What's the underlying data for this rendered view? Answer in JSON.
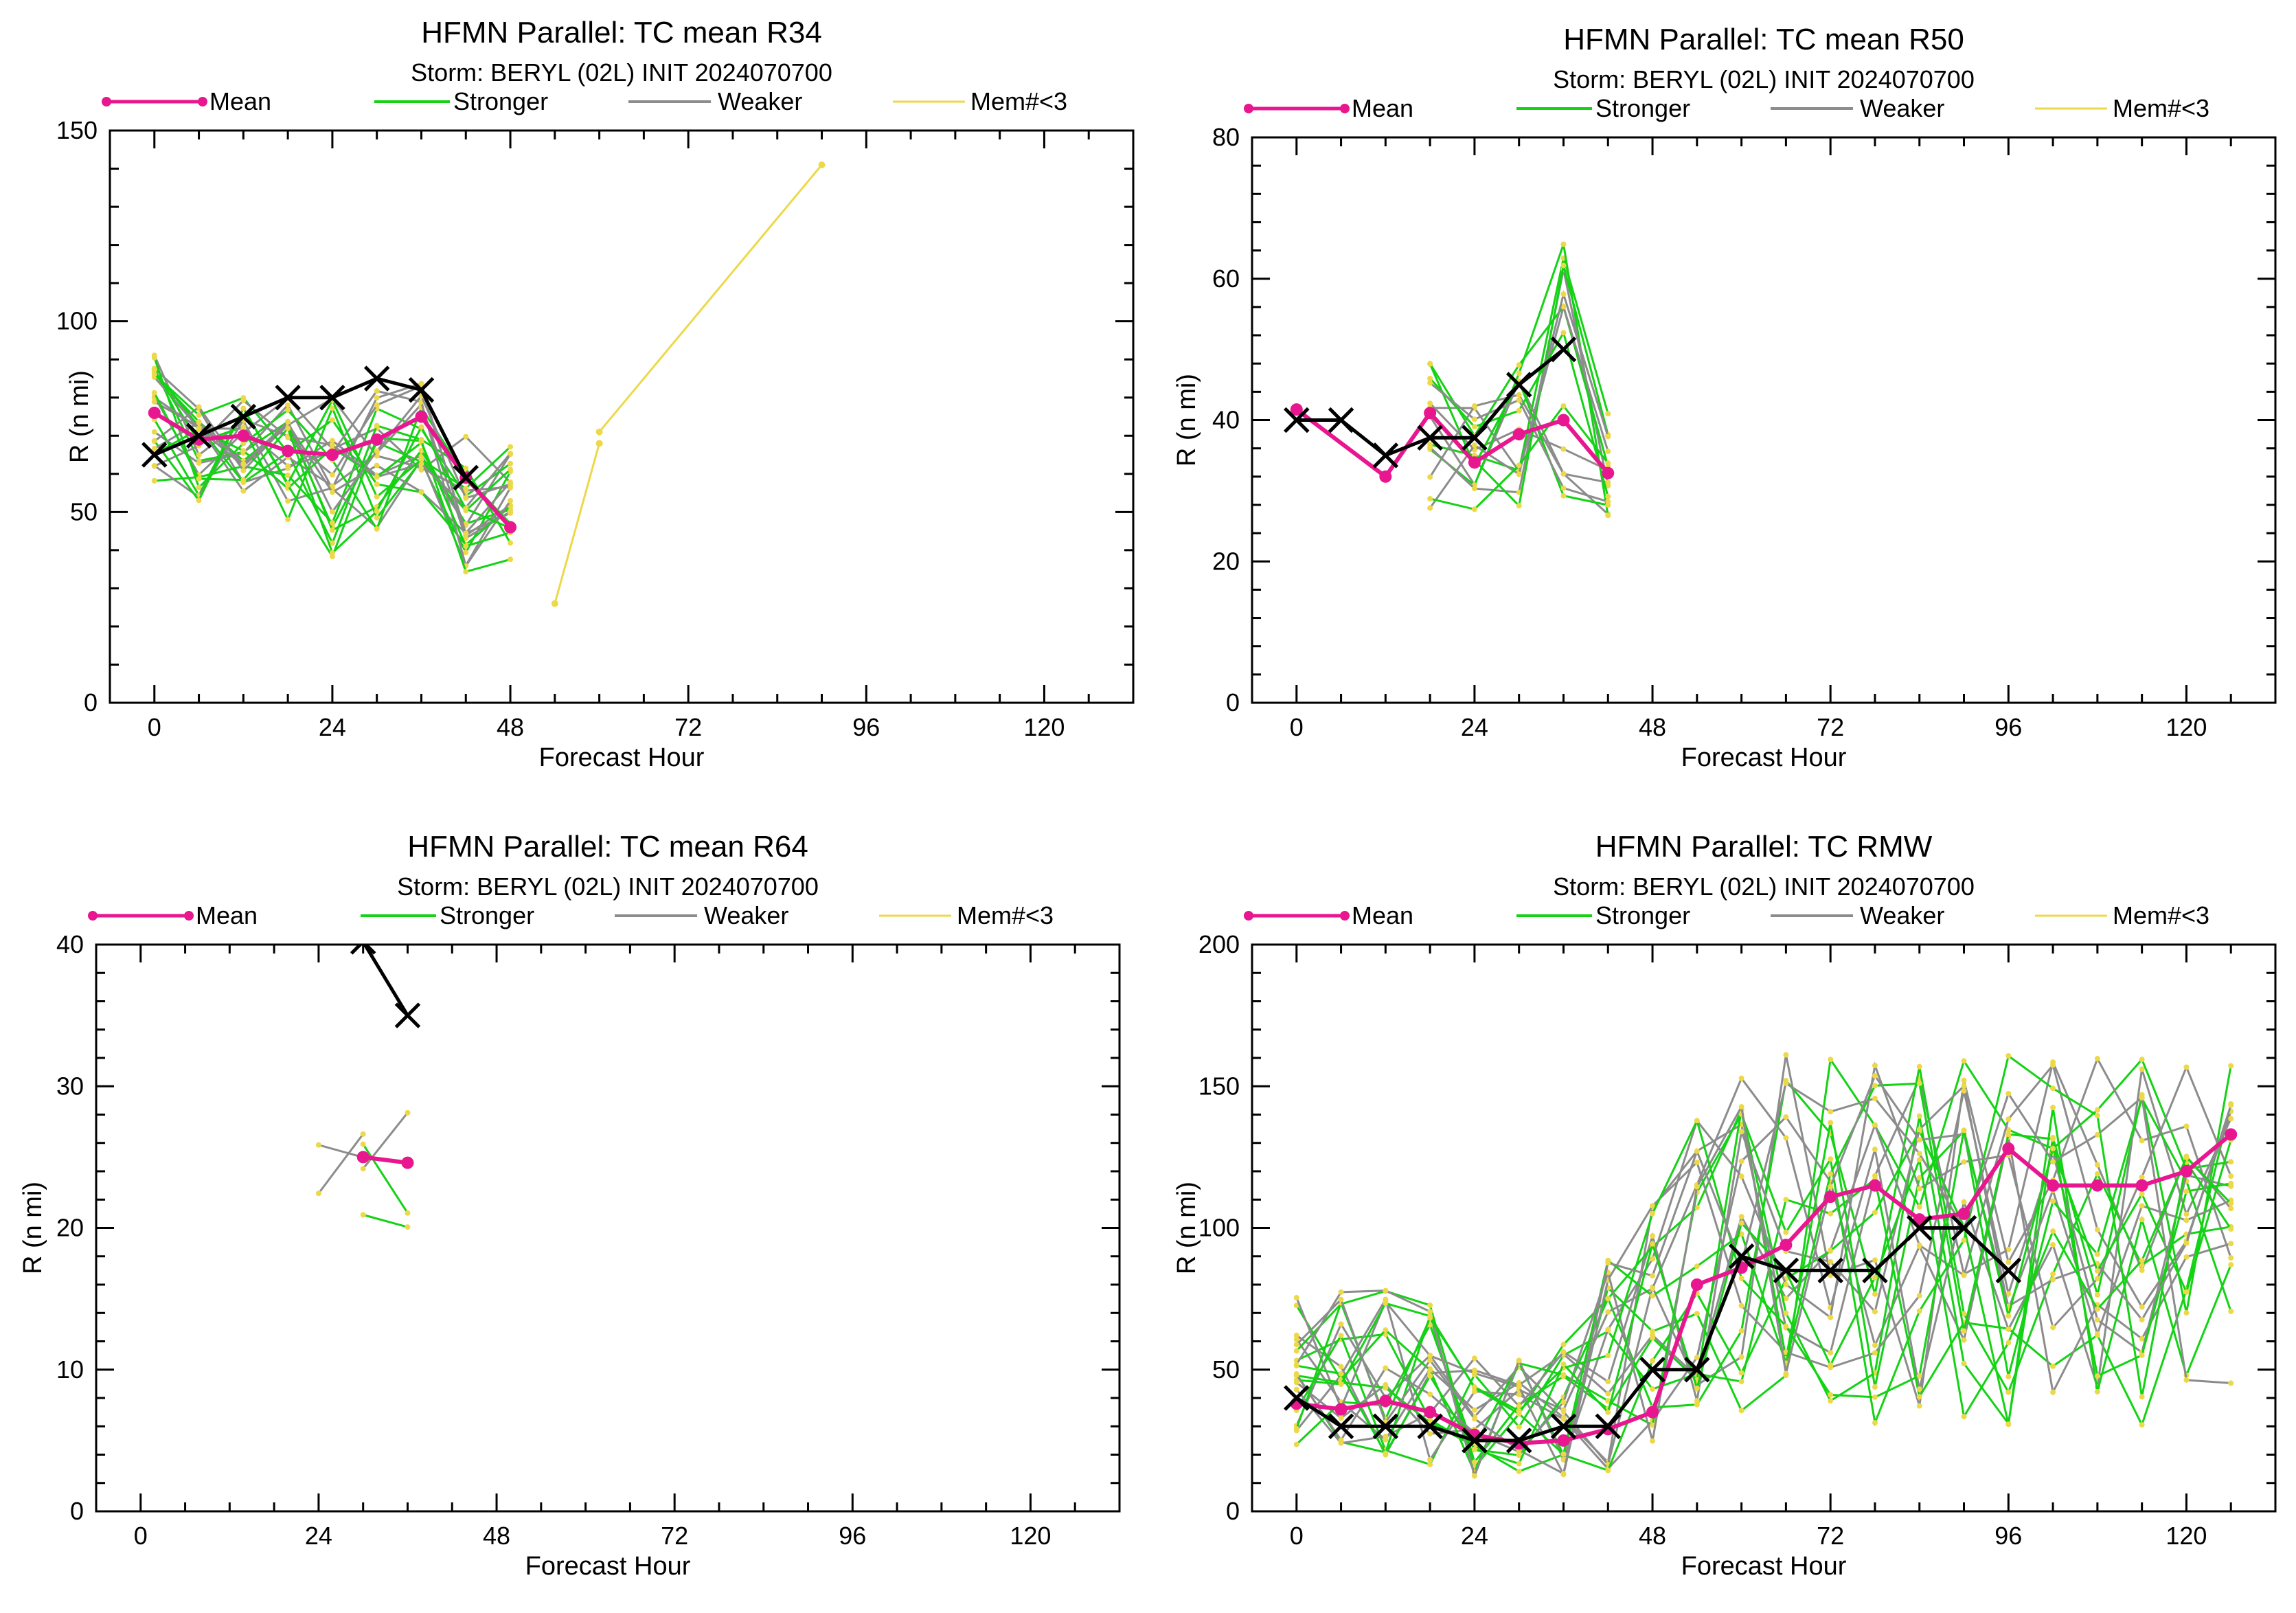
{
  "figure": {
    "background": "#ffffff"
  },
  "legend": {
    "mean": "Mean",
    "stronger": "Stronger",
    "weaker": "Weaker",
    "mem": "Mem#<3",
    "colors": {
      "mean": "#e8168f",
      "stronger": "#14d214",
      "weaker": "#8c8c8c",
      "mem": "#ecd94a",
      "best_track": "#000000"
    }
  },
  "chart_data": [
    {
      "type": "line",
      "title": "HFMN Parallel: TC mean R34",
      "subtitle": "Storm: BERYL (02L) INIT 2024070700",
      "xlabel": "Forecast Hour",
      "ylabel": "R (n mi)",
      "xlim": [
        -6,
        132
      ],
      "ylim": [
        0,
        150
      ],
      "xticks": [
        0,
        24,
        48,
        72,
        96,
        120
      ],
      "yticks": [
        0,
        50,
        100,
        150
      ],
      "grid": false,
      "legend_position": "top",
      "series": [
        {
          "name": "Mean",
          "x": [
            0,
            6,
            12,
            18,
            24,
            30,
            36,
            42,
            48
          ],
          "y": [
            76,
            69,
            70,
            66,
            65,
            69,
            75,
            59,
            46
          ]
        },
        {
          "x": [
            0,
            6,
            12,
            18,
            24,
            30,
            36,
            42
          ],
          "y": [
            65,
            70,
            75,
            80,
            80,
            85,
            82,
            59
          ]
        },
        {
          "name": "Mem#<3",
          "x": [
            54,
            60
          ],
          "y": [
            26,
            68
          ]
        },
        {
          "name": "Mem#<3",
          "x": [
            60,
            90
          ],
          "y": [
            71,
            141
          ]
        }
      ]
    },
    {
      "type": "line",
      "title": "HFMN Parallel: TC mean R50",
      "subtitle": "Storm: BERYL (02L) INIT 2024070700",
      "xlabel": "Forecast Hour",
      "ylabel": "R (n mi)",
      "xlim": [
        -6,
        132
      ],
      "ylim": [
        0,
        80
      ],
      "xticks": [
        0,
        24,
        48,
        72,
        96,
        120
      ],
      "yticks": [
        0,
        20,
        40,
        60,
        80
      ],
      "grid": false,
      "legend_position": "top",
      "series": [
        {
          "name": "Mean",
          "x": [
            0,
            12,
            18,
            24,
            30,
            36,
            42
          ],
          "y": [
            41.5,
            32,
            41,
            34,
            38,
            40,
            32.5
          ]
        },
        {
          "x": [
            0,
            6,
            12,
            18,
            24,
            30,
            36
          ],
          "y": [
            40,
            40,
            35,
            37.5,
            37.5,
            45,
            50
          ]
        }
      ]
    },
    {
      "type": "line",
      "title": "HFMN Parallel: TC mean R64",
      "subtitle": "Storm: BERYL (02L) INIT 2024070700",
      "xlabel": "Forecast Hour",
      "ylabel": "R (n mi)",
      "xlim": [
        -6,
        132
      ],
      "ylim": [
        0,
        40
      ],
      "xticks": [
        0,
        24,
        48,
        72,
        96,
        120
      ],
      "yticks": [
        0,
        10,
        20,
        30,
        40
      ],
      "grid": false,
      "legend_position": "top",
      "series": [
        {
          "name": "Mean",
          "x": [
            30,
            36
          ],
          "y": [
            25,
            24.6
          ]
        },
        {
          "x": [
            30,
            36
          ],
          "y": [
            40.2,
            35
          ]
        }
      ]
    },
    {
      "type": "line",
      "title": "HFMN Parallel: TC RMW",
      "subtitle": "Storm: BERYL (02L) INIT 2024070700",
      "xlabel": "Forecast Hour",
      "ylabel": "R (n mi)",
      "xlim": [
        -6,
        132
      ],
      "ylim": [
        0,
        200
      ],
      "xticks": [
        0,
        24,
        48,
        72,
        96,
        120
      ],
      "yticks": [
        0,
        50,
        100,
        150,
        200
      ],
      "grid": false,
      "legend_position": "top",
      "series": [
        {
          "name": "Mean",
          "x": [
            0,
            6,
            12,
            18,
            24,
            30,
            36,
            42,
            48,
            54,
            60,
            66,
            72,
            78,
            84,
            90,
            96,
            102,
            108,
            114,
            120,
            126
          ],
          "y": [
            38,
            36,
            39,
            35,
            27,
            24,
            25,
            29,
            35,
            80,
            86,
            94,
            111,
            115,
            103,
            105,
            128,
            115,
            115,
            115,
            120,
            133
          ]
        },
        {
          "x": [
            0,
            6,
            12,
            18,
            24,
            30,
            36,
            42,
            48,
            54,
            60,
            66,
            72,
            78,
            84,
            90,
            96
          ],
          "y": [
            40,
            30,
            30,
            30,
            25,
            25,
            30,
            30,
            50,
            50,
            90,
            85,
            85,
            85,
            100,
            100,
            85
          ]
        }
      ]
    }
  ]
}
